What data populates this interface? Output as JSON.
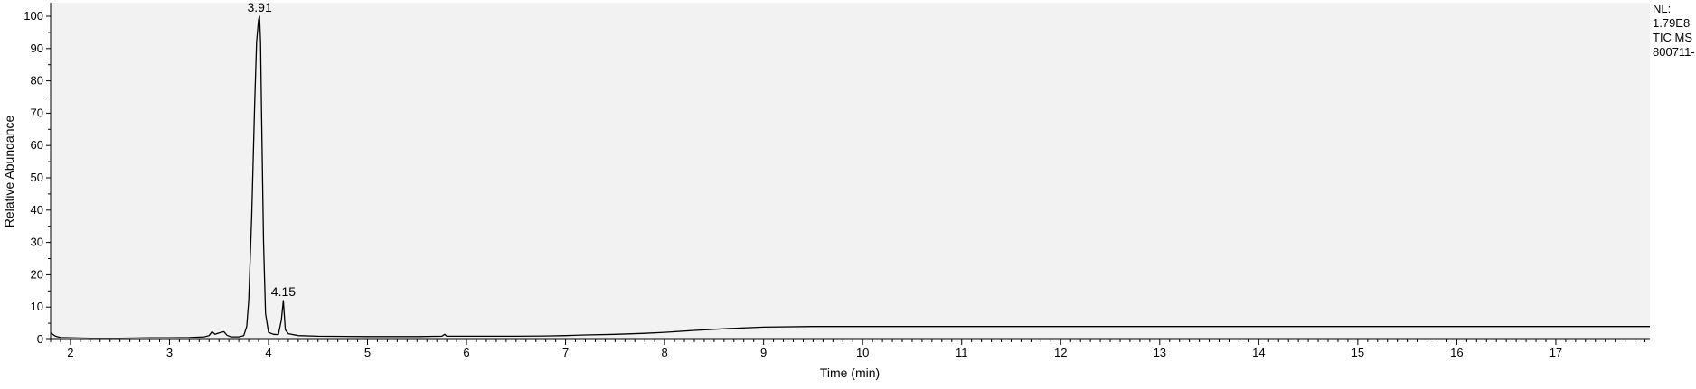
{
  "chart_data": {
    "type": "line",
    "title": "",
    "xlabel": "Time (min)",
    "ylabel": "Relative Abundance",
    "xlim": [
      1.8,
      17.95
    ],
    "ylim": [
      0,
      100
    ],
    "x_ticks": [
      2,
      3,
      4,
      5,
      6,
      7,
      8,
      9,
      10,
      11,
      12,
      13,
      14,
      15,
      16,
      17
    ],
    "y_ticks": [
      0,
      10,
      20,
      30,
      40,
      50,
      60,
      70,
      80,
      90,
      100
    ],
    "grid": false,
    "legend": "none",
    "side_info": [
      "NL:",
      "1.79E8",
      "TIC  MS",
      "800711-"
    ],
    "peak_labels": [
      {
        "x": 3.91,
        "y": 100,
        "text": "3.91"
      },
      {
        "x": 4.15,
        "y": 12,
        "text": "4.15"
      }
    ],
    "series": [
      {
        "color": "#000000",
        "x": [
          1.8,
          1.85,
          1.9,
          2.0,
          2.2,
          2.5,
          2.8,
          3.0,
          3.2,
          3.35,
          3.4,
          3.43,
          3.46,
          3.5,
          3.55,
          3.58,
          3.62,
          3.7,
          3.75,
          3.78,
          3.8,
          3.83,
          3.86,
          3.88,
          3.9,
          3.91,
          3.92,
          3.93,
          3.95,
          3.97,
          4.0,
          4.05,
          4.1,
          4.13,
          4.15,
          4.17,
          4.2,
          4.3,
          4.5,
          5.0,
          5.5,
          5.75,
          5.78,
          5.8,
          6.0,
          6.5,
          6.8,
          7.0,
          7.2,
          7.5,
          7.8,
          8.0,
          8.3,
          8.6,
          9.0,
          9.5,
          10.0,
          11.0,
          12.0,
          13.0,
          14.0,
          15.0,
          16.0,
          16.5,
          17.0,
          17.5,
          17.95
        ],
        "y": [
          2.0,
          1.0,
          0.6,
          0.5,
          0.4,
          0.4,
          0.5,
          0.5,
          0.6,
          0.8,
          1.2,
          2.4,
          1.6,
          2.0,
          2.4,
          1.3,
          0.8,
          0.8,
          1.2,
          4.0,
          12.0,
          38.0,
          72.0,
          92.0,
          99.0,
          100.0,
          92.0,
          70.0,
          30.0,
          8.0,
          2.2,
          1.6,
          1.5,
          6.0,
          12.0,
          3.0,
          1.8,
          1.2,
          1.0,
          0.9,
          0.9,
          1.0,
          1.6,
          1.0,
          1.0,
          1.0,
          1.1,
          1.2,
          1.4,
          1.6,
          1.9,
          2.2,
          2.8,
          3.3,
          3.8,
          4.0,
          4.0,
          4.0,
          4.0,
          4.0,
          4.0,
          4.0,
          4.0,
          4.0,
          4.0,
          4.0,
          4.0
        ]
      }
    ]
  }
}
